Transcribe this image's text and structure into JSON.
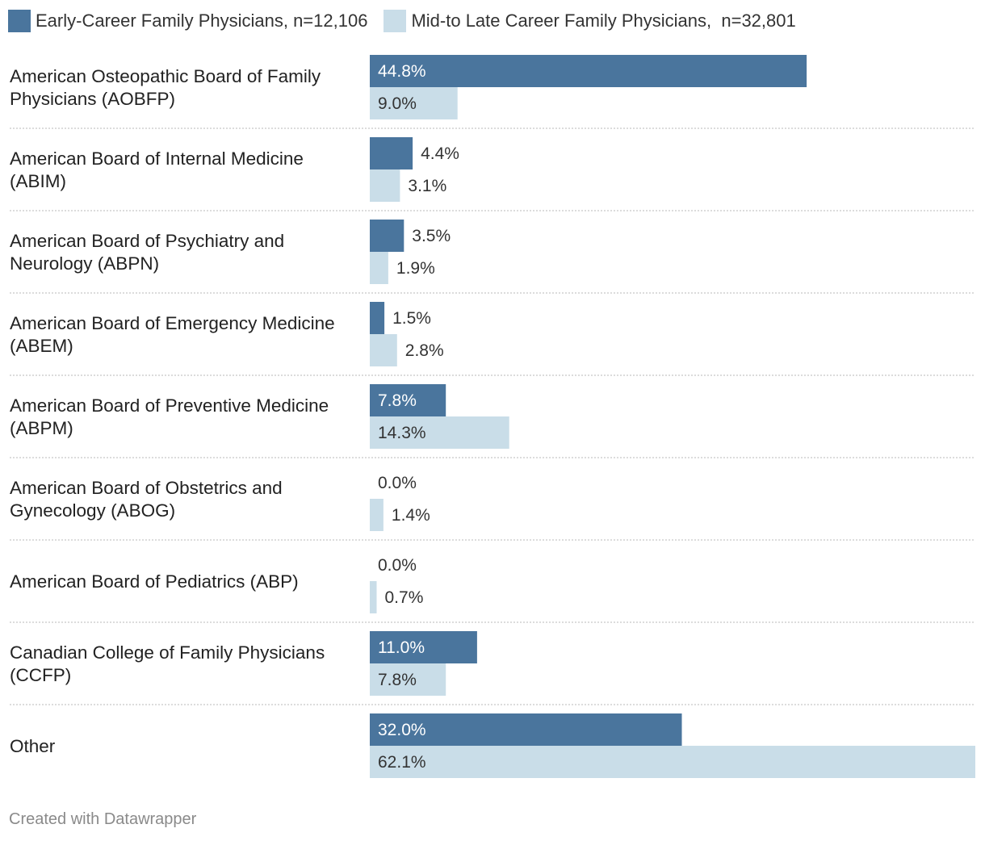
{
  "legend": {
    "early_label": "Early-Career Family Physicians, n=12,106",
    "late_label": "Mid-to Late Career Family Physicians,  n=32,801"
  },
  "colors": {
    "early": "#4a759d",
    "late": "#c9dde8",
    "divider": "#c8c8c8",
    "label_on_dark": "#ffffff",
    "label_on_light": "#333333"
  },
  "footer": "Created with Datawrapper",
  "chart_data": {
    "type": "bar",
    "orientation": "horizontal",
    "categories": [
      [
        "American Osteopathic Board of Family",
        "Physicians (AOBFP)"
      ],
      [
        "American Board of Internal Medicine",
        "(ABIM)"
      ],
      [
        "American Board of Psychiatry and",
        "Neurology (ABPN)"
      ],
      [
        "American Board of Emergency Medicine",
        "(ABEM)"
      ],
      [
        "American Board of Preventive Medicine",
        "(ABPM)"
      ],
      [
        "American Board of Obstetrics and",
        "Gynecology (ABOG)"
      ],
      [
        "American Board of Pediatrics (ABP)"
      ],
      [
        "Canadian College of Family Physicians",
        "(CCFP)"
      ],
      [
        "Other"
      ]
    ],
    "series": [
      {
        "name": "Early-Career Family Physicians, n=12,106",
        "values": [
          44.8,
          4.4,
          3.5,
          1.5,
          7.8,
          0.0,
          0.0,
          11.0,
          32.0
        ],
        "labels": [
          "44.8%",
          "4.4%",
          "3.5%",
          "1.5%",
          "7.8%",
          "0.0%",
          "0.0%",
          "11.0%",
          "32.0%"
        ]
      },
      {
        "name": "Mid-to Late Career Family Physicians,  n=32,801",
        "values": [
          9.0,
          3.1,
          1.9,
          2.8,
          14.3,
          1.4,
          0.7,
          7.8,
          62.1
        ],
        "labels": [
          "9.0%",
          "3.1%",
          "1.9%",
          "2.8%",
          "14.3%",
          "1.4%",
          "0.7%",
          "7.8%",
          "62.1%"
        ]
      }
    ],
    "xlim": [
      0,
      62.1
    ]
  }
}
